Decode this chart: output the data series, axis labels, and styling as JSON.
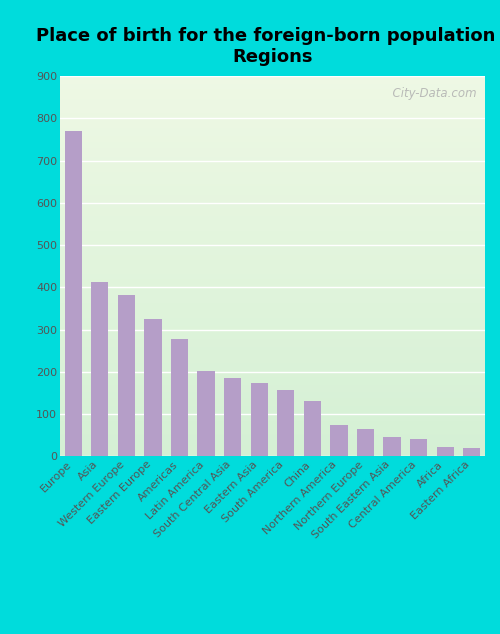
{
  "title": "Place of birth for the foreign-born population -\nRegions",
  "categories": [
    "Europe",
    "Asia",
    "Western Europe",
    "Eastern Europe",
    "Americas",
    "Latin America",
    "South Central Asia",
    "Eastern Asia",
    "South America",
    "China",
    "Northern America",
    "Northern Europe",
    "South Eastern Asia",
    "Central America",
    "Africa",
    "Eastern Africa"
  ],
  "values": [
    770,
    413,
    383,
    325,
    277,
    202,
    186,
    174,
    158,
    132,
    74,
    64,
    47,
    41,
    22,
    21
  ],
  "bar_color": "#b59ec8",
  "bg_outer": "#00dcdc",
  "bg_plot_top": "#eef8e4",
  "bg_plot_bottom": "#d4f0d4",
  "ylim": [
    0,
    900
  ],
  "yticks": [
    0,
    100,
    200,
    300,
    400,
    500,
    600,
    700,
    800,
    900
  ],
  "title_fontsize": 13,
  "tick_fontsize": 8,
  "watermark": "  City-Data.com",
  "watermark_fontsize": 8.5
}
